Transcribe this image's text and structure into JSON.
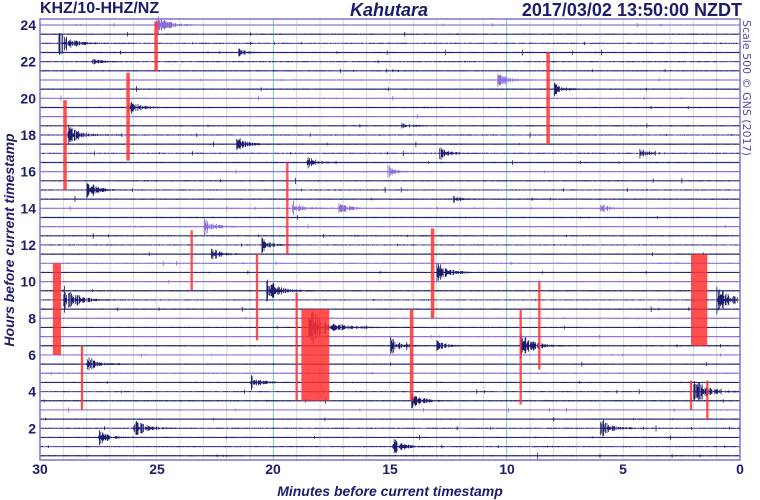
{
  "header": {
    "station": "KHZ/10-HHZ/NZ",
    "site": "Kahutara",
    "timestamp": "2017/03/02 13:50:00 NZDT"
  },
  "credit": "Scale 500 © GNS (2017)",
  "colors": {
    "trace_a": "#8a6cd6",
    "trace_b": "#1c1c6c",
    "clipped": "#ff3030",
    "grid_minor": "#cfe3cf",
    "grid_major": "#7fc7b8",
    "frame": "#8070d0"
  },
  "chart_data": {
    "type": "helicorder",
    "xlabel": "Minutes before current timestamp",
    "ylabel": "Hours before current timestamp",
    "xlim": [
      30,
      0
    ],
    "ylim": [
      0,
      24
    ],
    "x_ticks": [
      "30",
      "25",
      "20",
      "15",
      "10",
      "5",
      "0"
    ],
    "y_ticks": [
      "24",
      "22",
      "20",
      "18",
      "16",
      "14",
      "12",
      "10",
      "8",
      "6",
      "4",
      "2"
    ],
    "trace_interval_hours": 0.5,
    "grid": true,
    "events": [
      {
        "hour": 24.0,
        "minute": 25.0,
        "amplitude": 12,
        "color": "a"
      },
      {
        "hour": 23.0,
        "minute": 29.2,
        "amplitude": 14,
        "color": "b"
      },
      {
        "hour": 22.0,
        "minute": 27.8,
        "amplitude": 6,
        "color": "b"
      },
      {
        "hour": 22.5,
        "minute": 21.5,
        "amplitude": 5,
        "color": "b"
      },
      {
        "hour": 21.0,
        "minute": 10.4,
        "amplitude": 9,
        "color": "a"
      },
      {
        "hour": 20.5,
        "minute": 8.0,
        "amplitude": 8,
        "color": "a"
      },
      {
        "hour": 19.5,
        "minute": 26.2,
        "amplitude": 10,
        "color": "b"
      },
      {
        "hour": 18.0,
        "minute": 28.8,
        "amplitude": 12,
        "color": "b"
      },
      {
        "hour": 17.5,
        "minute": 21.6,
        "amplitude": 9,
        "color": "b"
      },
      {
        "hour": 18.5,
        "minute": 14.5,
        "amplitude": 6,
        "color": "a"
      },
      {
        "hour": 17.0,
        "minute": 12.9,
        "amplitude": 8,
        "color": "b"
      },
      {
        "hour": 17.0,
        "minute": 4.3,
        "amplitude": 7,
        "color": "b"
      },
      {
        "hour": 16.5,
        "minute": 18.6,
        "amplitude": 8,
        "color": "b"
      },
      {
        "hour": 16.0,
        "minute": 15.1,
        "amplitude": 7,
        "color": "a"
      },
      {
        "hour": 14.5,
        "minute": 12.3,
        "amplitude": 5,
        "color": "b"
      },
      {
        "hour": 14.0,
        "minute": 19.2,
        "amplitude": 9,
        "color": "a"
      },
      {
        "hour": 14.0,
        "minute": 6.0,
        "amplitude": 7,
        "color": "a"
      },
      {
        "hour": 14.0,
        "minute": 17.2,
        "amplitude": 8,
        "color": "a"
      },
      {
        "hour": 15.0,
        "minute": 28.0,
        "amplitude": 10,
        "color": "b"
      },
      {
        "hour": 13.0,
        "minute": 23.0,
        "amplitude": 10,
        "color": "a"
      },
      {
        "hour": 11.5,
        "minute": 22.7,
        "amplitude": 9,
        "color": "b"
      },
      {
        "hour": 12.0,
        "minute": 20.5,
        "amplitude": 8,
        "color": "b"
      },
      {
        "hour": 9.5,
        "minute": 20.3,
        "amplitude": 14,
        "color": "b"
      },
      {
        "hour": 9.0,
        "minute": 29.0,
        "amplitude": 16,
        "color": "b"
      },
      {
        "hour": 10.5,
        "minute": 13.0,
        "amplitude": 12,
        "color": "b"
      },
      {
        "hour": 9.0,
        "minute": 1.0,
        "amplitude": 16,
        "color": "b"
      },
      {
        "hour": 7.5,
        "minute": 18.5,
        "amplitude": 22,
        "color": "a"
      },
      {
        "hour": 6.5,
        "minute": 15.0,
        "amplitude": 10,
        "color": "a"
      },
      {
        "hour": 6.5,
        "minute": 9.4,
        "amplitude": 14,
        "color": "a"
      },
      {
        "hour": 6.5,
        "minute": 13.0,
        "amplitude": 7,
        "color": "a"
      },
      {
        "hour": 5.5,
        "minute": 28.0,
        "amplitude": 10,
        "color": "b"
      },
      {
        "hour": 4.5,
        "minute": 21.0,
        "amplitude": 9,
        "color": "b"
      },
      {
        "hour": 4.0,
        "minute": 2.0,
        "amplitude": 16,
        "color": "b"
      },
      {
        "hour": 3.5,
        "minute": 14.1,
        "amplitude": 10,
        "color": "b"
      },
      {
        "hour": 2.0,
        "minute": 26.0,
        "amplitude": 12,
        "color": "b"
      },
      {
        "hour": 1.5,
        "minute": 27.5,
        "amplitude": 9,
        "color": "b"
      },
      {
        "hour": 2.0,
        "minute": 6.0,
        "amplitude": 12,
        "color": "b"
      },
      {
        "hour": 1.0,
        "minute": 14.9,
        "amplitude": 10,
        "color": "b"
      }
    ],
    "clipped": [
      {
        "minute_start": 25.1,
        "minute_end": 24.95,
        "hour_top": 24.2,
        "hour_bottom": 21.5
      },
      {
        "minute_start": 26.3,
        "minute_end": 26.15,
        "hour_top": 21.4,
        "hour_bottom": 16.6
      },
      {
        "minute_start": 29.0,
        "minute_end": 28.85,
        "hour_top": 19.9,
        "hour_bottom": 15.0
      },
      {
        "minute_start": 8.3,
        "minute_end": 8.15,
        "hour_top": 22.5,
        "hour_bottom": 17.5
      },
      {
        "minute_start": 19.45,
        "minute_end": 19.35,
        "hour_top": 16.5,
        "hour_bottom": 11.5
      },
      {
        "minute_start": 23.55,
        "minute_end": 23.45,
        "hour_top": 12.8,
        "hour_bottom": 9.5
      },
      {
        "minute_start": 20.75,
        "minute_end": 20.65,
        "hour_top": 11.5,
        "hour_bottom": 6.8
      },
      {
        "minute_start": 29.45,
        "minute_end": 29.1,
        "hour_top": 11.0,
        "hour_bottom": 6.0
      },
      {
        "minute_start": 13.25,
        "minute_end": 13.1,
        "hour_top": 12.9,
        "hour_bottom": 8.0
      },
      {
        "minute_start": 19.05,
        "minute_end": 18.95,
        "hour_top": 9.4,
        "hour_bottom": 3.5
      },
      {
        "minute_start": 18.8,
        "minute_end": 17.6,
        "hour_top": 8.5,
        "hour_bottom": 3.5
      },
      {
        "minute_start": 14.15,
        "minute_end": 14.0,
        "hour_top": 8.5,
        "hour_bottom": 3.5
      },
      {
        "minute_start": 28.25,
        "minute_end": 28.15,
        "hour_top": 6.5,
        "hour_bottom": 3.0
      },
      {
        "minute_start": 9.45,
        "minute_end": 9.35,
        "hour_top": 8.5,
        "hour_bottom": 3.3
      },
      {
        "minute_start": 8.65,
        "minute_end": 8.55,
        "hour_top": 10.0,
        "hour_bottom": 5.2
      },
      {
        "minute_start": 2.1,
        "minute_end": 1.4,
        "hour_top": 11.5,
        "hour_bottom": 6.5
      },
      {
        "minute_start": 2.15,
        "minute_end": 2.05,
        "hour_top": 4.6,
        "hour_bottom": 3.0
      },
      {
        "minute_start": 1.45,
        "minute_end": 1.35,
        "hour_top": 4.6,
        "hour_bottom": 2.45
      }
    ]
  }
}
